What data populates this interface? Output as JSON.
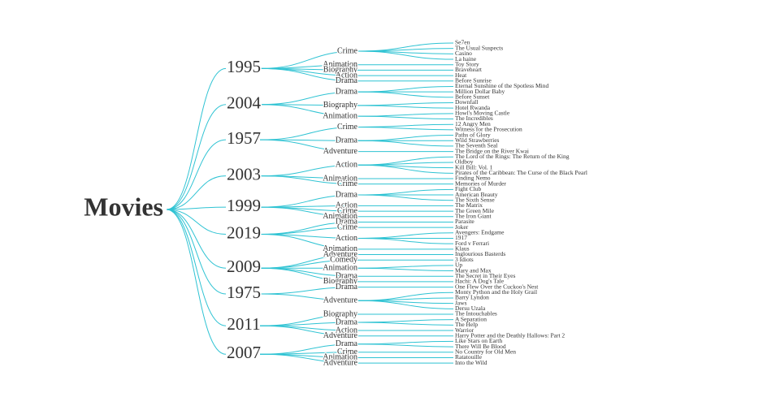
{
  "title": "Movies",
  "years": [
    {
      "label": "1995",
      "genres": [
        {
          "label": "Crime",
          "movies": [
            "Se7en",
            "The Usual Suspects",
            "Casino",
            "La haine"
          ]
        },
        {
          "label": "Animation",
          "movies": [
            "Toy Story"
          ]
        },
        {
          "label": "Biography",
          "movies": [
            "Braveheart"
          ]
        },
        {
          "label": "Action",
          "movies": [
            "Heat"
          ]
        },
        {
          "label": "Drama",
          "movies": [
            "Before Sunrise"
          ]
        }
      ]
    },
    {
      "label": "2004",
      "genres": [
        {
          "label": "Drama",
          "movies": [
            "Eternal Sunshine of the Spotless Mind",
            "Million Dollar Baby",
            "Before Sunset"
          ]
        },
        {
          "label": "Biography",
          "movies": [
            "Downfall",
            "Hotel Rwanda"
          ]
        },
        {
          "label": "Animation",
          "movies": [
            "Howl's Moving Castle",
            "The Incredibles"
          ]
        }
      ]
    },
    {
      "label": "1957",
      "genres": [
        {
          "label": "Crime",
          "movies": [
            "12 Angry Men",
            "Witness for the Prosecution"
          ]
        },
        {
          "label": "Drama",
          "movies": [
            "Paths of Glory",
            "Wild Strawberries",
            "The Seventh Seal"
          ]
        },
        {
          "label": "Adventure",
          "movies": [
            "The Bridge on the River Kwai"
          ]
        }
      ]
    },
    {
      "label": "2003",
      "genres": [
        {
          "label": "Action",
          "movies": [
            "The Lord of the Rings: The Return of the King",
            "Oldboy",
            "Kill Bill: Vol. 1",
            "Pirates of the Caribbean: The Curse of the Black Pearl"
          ]
        },
        {
          "label": "Animation",
          "movies": [
            "Finding Nemo"
          ]
        },
        {
          "label": "Crime",
          "movies": [
            "Memories of Murder"
          ]
        }
      ]
    },
    {
      "label": "1999",
      "genres": [
        {
          "label": "Drama",
          "movies": [
            "Fight Club",
            "American Beauty",
            "The Sixth Sense"
          ]
        },
        {
          "label": "Action",
          "movies": [
            "The Matrix"
          ]
        },
        {
          "label": "Crime",
          "movies": [
            "The Green Mile"
          ]
        },
        {
          "label": "Animation",
          "movies": [
            "The Iron Giant"
          ]
        }
      ]
    },
    {
      "label": "2019",
      "genres": [
        {
          "label": "Drama",
          "movies": [
            "Parasite"
          ]
        },
        {
          "label": "Crime",
          "movies": [
            "Joker"
          ]
        },
        {
          "label": "Action",
          "movies": [
            "Avengers: Endgame",
            "1917",
            "Ford v Ferrari"
          ]
        },
        {
          "label": "Animation",
          "movies": [
            "Klaus"
          ]
        }
      ]
    },
    {
      "label": "2009",
      "genres": [
        {
          "label": "Adventure",
          "movies": [
            "Inglourious Basterds"
          ]
        },
        {
          "label": "Comedy",
          "movies": [
            "3 Idiots"
          ]
        },
        {
          "label": "Animation",
          "movies": [
            "Up",
            "Mary and Max"
          ]
        },
        {
          "label": "Drama",
          "movies": [
            "The Secret in Their Eyes"
          ]
        },
        {
          "label": "Biography",
          "movies": [
            "Hachi: A Dog's Tale"
          ]
        }
      ]
    },
    {
      "label": "1975",
      "genres": [
        {
          "label": "Drama",
          "movies": [
            "One Flew Over the Cuckoo's Nest"
          ]
        },
        {
          "label": "Adventure",
          "movies": [
            "Monty Python and the Holy Grail",
            "Barry Lyndon",
            "Jaws",
            "Dersu Uzala"
          ]
        }
      ]
    },
    {
      "label": "2011",
      "genres": [
        {
          "label": "Biography",
          "movies": [
            "The Intouchables"
          ]
        },
        {
          "label": "Drama",
          "movies": [
            "A Separation",
            "The Help"
          ]
        },
        {
          "label": "Action",
          "movies": [
            "Warrior"
          ]
        },
        {
          "label": "Adventure",
          "movies": [
            "Harry Potter and the Deathly Hallows: Part 2"
          ]
        }
      ]
    },
    {
      "label": "2007",
      "genres": [
        {
          "label": "Drama",
          "movies": [
            "Like Stars on Earth",
            "There Will Be Blood"
          ]
        },
        {
          "label": "Crime",
          "movies": [
            "No Country for Old Men"
          ]
        },
        {
          "label": "Animation",
          "movies": [
            "Ratatouille"
          ]
        },
        {
          "label": "Adventure",
          "movies": [
            "Into the Wild"
          ]
        }
      ]
    }
  ]
}
